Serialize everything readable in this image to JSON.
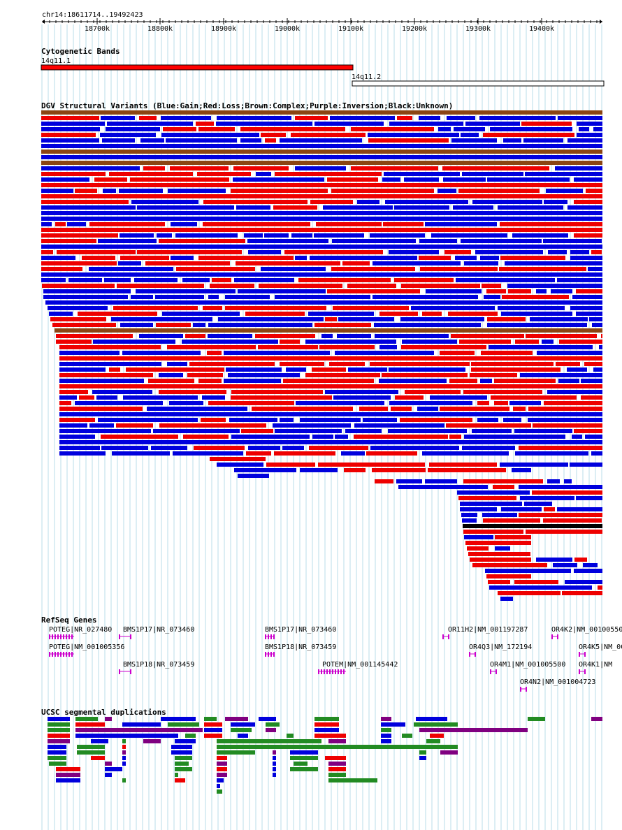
{
  "ruler": {
    "position_label": "chr14:18611714..19492423",
    "ticks": [
      "18700k",
      "18800k",
      "18900k",
      "19000k",
      "19100k",
      "19200k",
      "19300k",
      "19400k"
    ]
  },
  "cytobands": {
    "title": "Cytogenetic Bands",
    "bands": [
      {
        "name": "14q11.1",
        "color": "#ff0000"
      },
      {
        "name": "14q11.2",
        "color": "#ffffff"
      }
    ]
  },
  "dgv": {
    "title": "DGV Structural Variants (Blue:Gain;Red:Loss;Brown:Complex;Purple:Inversion;Black:Unknown)",
    "colors": {
      "gain": "#0000dd",
      "loss": "#ee0000",
      "complex": "#8b4513",
      "inversion": "#800080",
      "unknown": "#000000"
    }
  },
  "refseq": {
    "title": "RefSeq Genes",
    "genes": [
      {
        "label": "POTEG|NR_027480"
      },
      {
        "label": "BMS1P17|NR_073460"
      },
      {
        "label": "BMS1P17|NR_073460"
      },
      {
        "label": "OR11H2|NM_001197287"
      },
      {
        "label": "OR4K2|NM_00100550"
      },
      {
        "label": "POTEG|NM_001005356"
      },
      {
        "label": "BMS1P18|NR_073459"
      },
      {
        "label": "OR4Q3|NM_172194"
      },
      {
        "label": "OR4K5|NM_00"
      },
      {
        "label": "BMS1P18|NR_073459"
      },
      {
        "label": "POTEM|NM_001145442"
      },
      {
        "label": "OR4M1|NM_001005500"
      },
      {
        "label": "OR4K1|NM"
      },
      {
        "label": "OR4N2|NM_001004723"
      }
    ],
    "color": "#cc00cc"
  },
  "segdups": {
    "title": "UCSC segmental duplications",
    "colors": {
      "high": "#ee0000",
      "mid": "#228b22",
      "low": "#0000dd",
      "other": "#800080"
    }
  }
}
